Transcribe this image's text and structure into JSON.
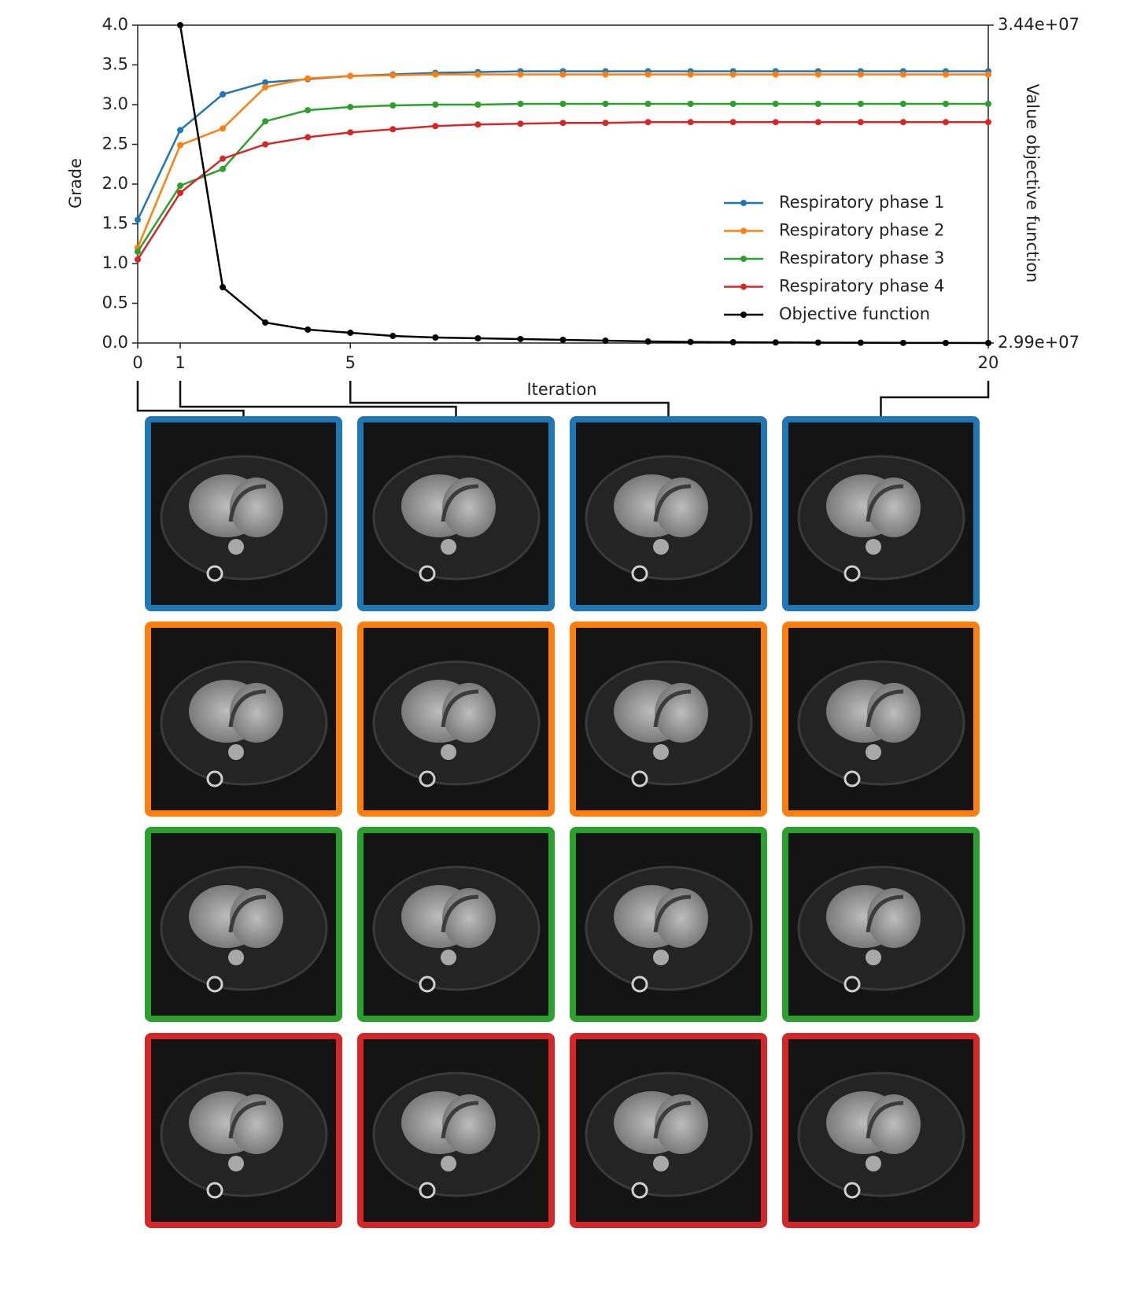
{
  "chart_data": {
    "type": "line",
    "xlabel": "Iteration",
    "ylabel": "Grade",
    "y2label": "Value objective function",
    "x": [
      0,
      1,
      2,
      3,
      4,
      5,
      6,
      7,
      8,
      9,
      10,
      11,
      12,
      13,
      14,
      15,
      16,
      17,
      18,
      19,
      20
    ],
    "xlim": [
      0,
      20
    ],
    "xticks": [
      0,
      1,
      5,
      20
    ],
    "ylim": [
      0,
      4
    ],
    "yticks": [
      {
        "value": 0,
        "label": "0.0"
      },
      0.5,
      {
        "value": 1,
        "label": "1.0"
      },
      1.5,
      {
        "value": 2,
        "label": "2.0"
      },
      2.5,
      {
        "value": 3,
        "label": "3.0"
      },
      3.5,
      {
        "value": 4,
        "label": "4.0"
      }
    ],
    "y2lim": [
      29900000,
      34400000
    ],
    "y2ticks": [
      {
        "value": 29900000,
        "label": "2.99e+07"
      },
      {
        "value": 34400000,
        "label": "3.44e+07"
      }
    ],
    "legend": "lower right",
    "series": [
      {
        "name": "Respiratory phase 1",
        "color": "#1f77b4",
        "values": [
          1.55,
          2.68,
          3.13,
          3.28,
          3.32,
          3.36,
          3.38,
          3.4,
          3.41,
          3.42,
          3.42,
          3.42,
          3.42,
          3.42,
          3.42,
          3.42,
          3.42,
          3.42,
          3.42,
          3.42,
          3.42
        ]
      },
      {
        "name": "Respiratory phase 2",
        "color": "#ff7f0e",
        "values": [
          1.2,
          2.49,
          2.7,
          3.22,
          3.33,
          3.36,
          3.37,
          3.38,
          3.38,
          3.38,
          3.38,
          3.38,
          3.38,
          3.38,
          3.38,
          3.38,
          3.38,
          3.38,
          3.38,
          3.38,
          3.38
        ]
      },
      {
        "name": "Respiratory phase 3",
        "color": "#2ca02c",
        "values": [
          1.15,
          1.98,
          2.19,
          2.79,
          2.93,
          2.97,
          2.99,
          3.0,
          3.0,
          3.01,
          3.01,
          3.01,
          3.01,
          3.01,
          3.01,
          3.01,
          3.01,
          3.01,
          3.01,
          3.01,
          3.01
        ]
      },
      {
        "name": "Respiratory phase 4",
        "color": "#d62728",
        "values": [
          1.05,
          1.89,
          2.32,
          2.5,
          2.59,
          2.65,
          2.69,
          2.73,
          2.75,
          2.76,
          2.77,
          2.77,
          2.78,
          2.78,
          2.78,
          2.78,
          2.78,
          2.78,
          2.78,
          2.78,
          2.78
        ]
      },
      {
        "name": "Objective function",
        "color": "#000000",
        "axis": "y2",
        "values": [
          null,
          34400000,
          30690000,
          30190000,
          30090000,
          30045000,
          30000000,
          29978000,
          29967000,
          29956000,
          29945000,
          29933000,
          29922000,
          29915000,
          29911000,
          29908000,
          29906000,
          29904000,
          29902000,
          29901000,
          29900000
        ]
      }
    ]
  }
}
